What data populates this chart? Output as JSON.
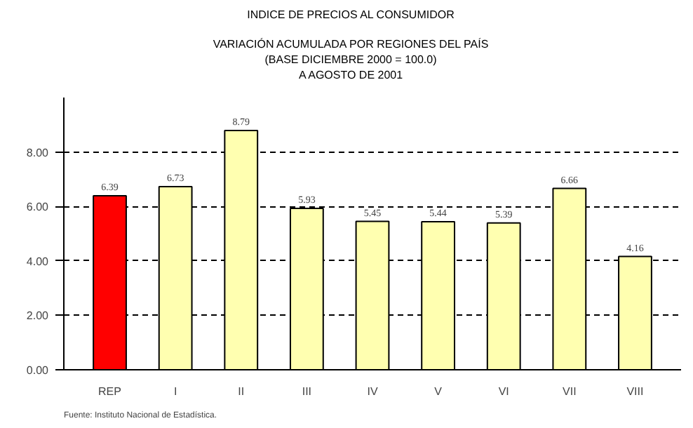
{
  "chart_data": {
    "type": "bar",
    "title": "INDICE DE PRECIOS AL CONSUMIDOR",
    "subtitle": "VARIACIÓN ACUMULADA POR REGIONES DEL PAÍS\n(BASE DICIEMBRE 2000 = 100.0)\nA AGOSTO DE 2001",
    "categories": [
      "REP",
      "I",
      "II",
      "III",
      "IV",
      "V",
      "VI",
      "VII",
      "VIII"
    ],
    "values": [
      6.39,
      6.73,
      8.79,
      5.93,
      5.45,
      5.44,
      5.39,
      6.66,
      4.16
    ],
    "colors": [
      "#ff0000",
      "#ffffb0",
      "#ffffb0",
      "#ffffb0",
      "#ffffb0",
      "#ffffb0",
      "#ffffb0",
      "#ffffb0",
      "#ffffb0"
    ],
    "ylim": [
      0,
      10
    ],
    "yticks": [
      {
        "value": 0,
        "label": "0.00"
      },
      {
        "value": 2,
        "label": "2.00"
      },
      {
        "value": 4,
        "label": "4.00"
      },
      {
        "value": 6,
        "label": "6.00"
      },
      {
        "value": 8,
        "label": "8.00"
      }
    ],
    "grid": "y",
    "data_labels": true,
    "annotations": [
      "Fuente: Instituto Nacional de Estadística."
    ]
  }
}
